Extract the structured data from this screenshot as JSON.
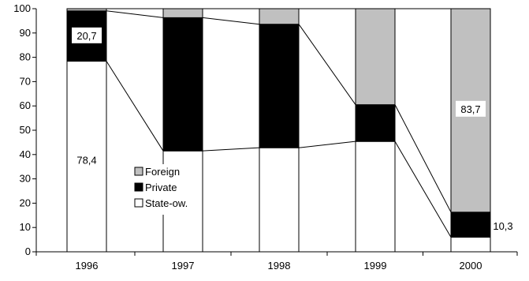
{
  "chart_data": {
    "type": "bar",
    "stacked": true,
    "percent_stacked": true,
    "categories": [
      "1996",
      "1997",
      "1998",
      "1999",
      "2000"
    ],
    "series": [
      {
        "name": "State-ow.",
        "values": [
          78.4,
          41.5,
          42.8,
          45.4,
          6.0
        ],
        "color": "#ffffff"
      },
      {
        "name": "Private",
        "values": [
          20.7,
          54.8,
          50.8,
          15.1,
          10.3
        ],
        "color": "#000000"
      },
      {
        "name": "Foreign",
        "values": [
          0.9,
          3.7,
          6.4,
          39.5,
          83.7
        ],
        "color": "#c0c0c0"
      }
    ],
    "ylim": [
      0,
      100
    ],
    "yticks": [
      "0",
      "10",
      "20",
      "30",
      "40",
      "50",
      "60",
      "70",
      "80",
      "90",
      "100"
    ],
    "ytick_values": [
      0,
      10,
      20,
      30,
      40,
      50,
      60,
      70,
      80,
      90,
      100
    ],
    "data_labels": [
      {
        "category": "1996",
        "series": "Private",
        "text": "20,7",
        "value": 20.7
      },
      {
        "category": "1996",
        "series": "State-ow.",
        "text": "78,4",
        "value": 78.4
      },
      {
        "category": "2000",
        "series": "Foreign",
        "text": "83,7",
        "value": 83.7
      },
      {
        "category": "2000",
        "series": "Private",
        "text": "10,3",
        "value": 10.3
      }
    ],
    "legend": {
      "placement": "inside-center-left",
      "entries": [
        "Foreign",
        "Private",
        "State-ow."
      ]
    },
    "grid": false,
    "series_connector_lines": true,
    "title": "",
    "xlabel": "",
    "ylabel": ""
  }
}
